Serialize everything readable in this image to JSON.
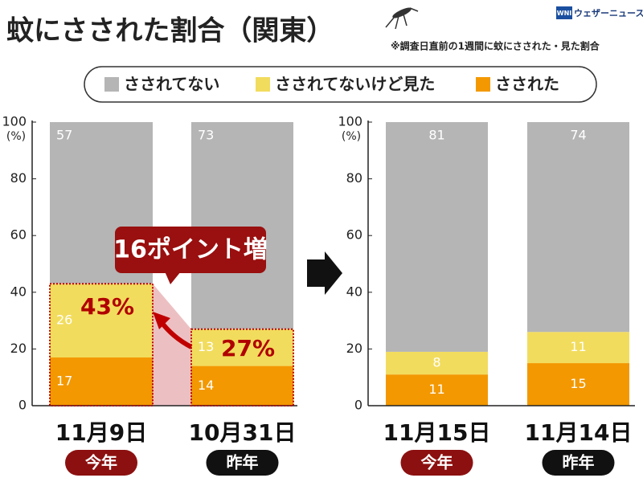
{
  "title": "蚊にさされた割合（関東）",
  "note": "※調査日直前の1週間に蚊にさされた・見た割合",
  "logo": {
    "mark": "WNI",
    "text": "ウェザーニュース"
  },
  "chart_data": [
    {
      "type": "bar",
      "stacked": true,
      "y_label": "(%)",
      "categories": [
        "11月9日",
        "10月31日"
      ],
      "category_tags": [
        "今年",
        "昨年"
      ],
      "ylim": [
        0,
        100
      ],
      "yticks": [
        0,
        20,
        40,
        60,
        80,
        100
      ],
      "series": [
        {
          "name": "さされた",
          "color": "#f39800",
          "values": [
            17,
            14
          ]
        },
        {
          "name": "さされてないけど見た",
          "color": "#f2dc5d",
          "values": [
            26,
            13
          ]
        },
        {
          "name": "さされてない",
          "color": "#b5b5b5",
          "values": [
            57,
            73
          ]
        }
      ],
      "annotations": {
        "totals": [
          "43%",
          "27%"
        ],
        "callout": "16ポイント増"
      }
    },
    {
      "type": "bar",
      "stacked": true,
      "y_label": "(%)",
      "categories": [
        "11月15日",
        "11月14日"
      ],
      "category_tags": [
        "今年",
        "昨年"
      ],
      "ylim": [
        0,
        100
      ],
      "yticks": [
        0,
        20,
        40,
        60,
        80,
        100
      ],
      "series": [
        {
          "name": "さされた",
          "color": "#f39800",
          "values": [
            11,
            15
          ]
        },
        {
          "name": "さされてないけど見た",
          "color": "#f2dc5d",
          "values": [
            8,
            11
          ]
        },
        {
          "name": "さされてない",
          "color": "#b5b5b5",
          "values": [
            81,
            74
          ]
        }
      ]
    }
  ]
}
